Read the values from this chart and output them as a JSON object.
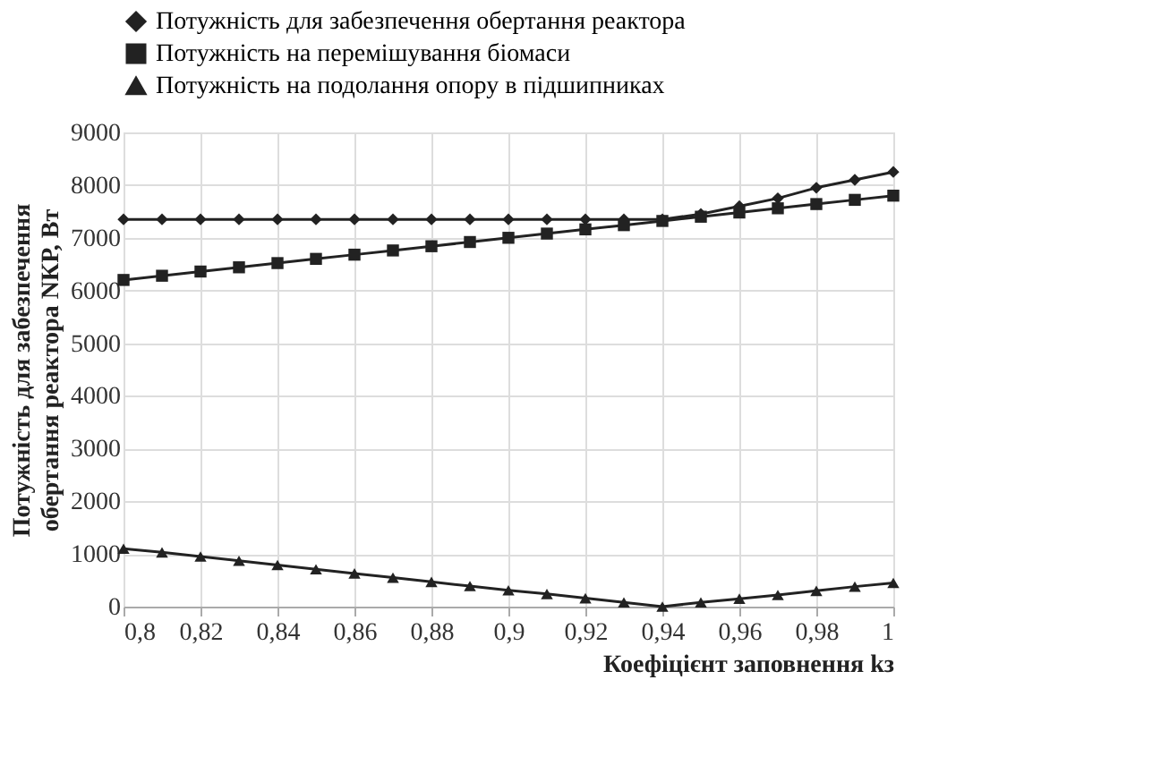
{
  "chart_data": {
    "type": "line",
    "xlabel": "Коефіцієнт заповнення kз",
    "ylabel": "Потужність для забезпечення обертання реактора NКР, Вт",
    "x": [
      0.8,
      0.81,
      0.82,
      0.83,
      0.84,
      0.85,
      0.86,
      0.87,
      0.88,
      0.89,
      0.9,
      0.91,
      0.92,
      0.93,
      0.94,
      0.95,
      0.96,
      0.97,
      0.98,
      0.99,
      1.0
    ],
    "series": [
      {
        "name": "Потужність для забезпечення обертання реактора",
        "color": "#222222",
        "marker": "diamond",
        "values": [
          7350,
          7350,
          7350,
          7350,
          7350,
          7350,
          7350,
          7350,
          7350,
          7350,
          7350,
          7350,
          7350,
          7350,
          7350,
          7450,
          7600,
          7750,
          7950,
          8100,
          8250
        ]
      },
      {
        "name": "Потужність на перемішування біомаси",
        "color": "#222222",
        "marker": "square",
        "values": [
          6200,
          6280,
          6360,
          6440,
          6520,
          6600,
          6680,
          6760,
          6840,
          6920,
          7000,
          7080,
          7160,
          7240,
          7320,
          7400,
          7480,
          7560,
          7640,
          7720,
          7800
        ]
      },
      {
        "name": "Потужність на подолання опору в підшипниках",
        "color": "#222222",
        "marker": "triangle",
        "values": [
          1100,
          1030,
          950,
          870,
          790,
          710,
          630,
          550,
          470,
          390,
          310,
          240,
          160,
          80,
          0,
          80,
          150,
          220,
          300,
          380,
          450
        ]
      }
    ],
    "xlim": [
      0.8,
      1.0
    ],
    "xticks": [
      {
        "value": 0.8,
        "label": "0,8"
      },
      {
        "value": 0.82,
        "label": "0,82"
      },
      {
        "value": 0.84,
        "label": "0,84"
      },
      {
        "value": 0.86,
        "label": "0,86"
      },
      {
        "value": 0.88,
        "label": "0,88"
      },
      {
        "value": 0.9,
        "label": "0,9"
      },
      {
        "value": 0.92,
        "label": "0,92"
      },
      {
        "value": 0.94,
        "label": "0,94"
      },
      {
        "value": 0.96,
        "label": "0,96"
      },
      {
        "value": 0.98,
        "label": "0,98"
      },
      {
        "value": 1.0,
        "label": "1"
      }
    ],
    "ylim": [
      0,
      9000
    ],
    "yticks": [
      0,
      1000,
      2000,
      3000,
      4000,
      5000,
      6000,
      7000,
      8000,
      9000
    ],
    "grid": true,
    "legend": "top",
    "line_style": "solid"
  }
}
